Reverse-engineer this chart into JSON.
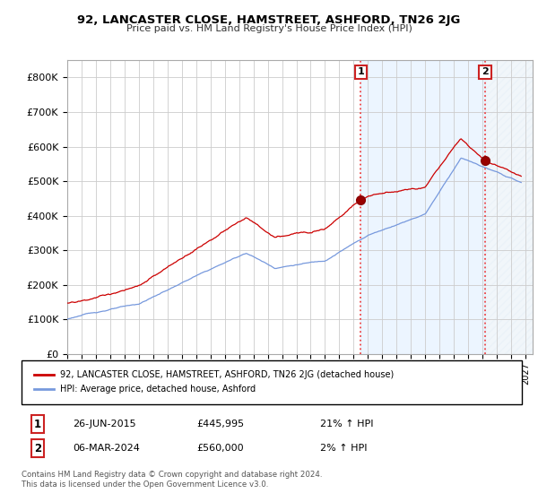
{
  "title": "92, LANCASTER CLOSE, HAMSTREET, ASHFORD, TN26 2JG",
  "subtitle": "Price paid vs. HM Land Registry's House Price Index (HPI)",
  "background_color": "#ffffff",
  "plot_background": "#ffffff",
  "grid_color": "#cccccc",
  "hpi_color": "#7799dd",
  "price_color": "#cc0000",
  "ylim": [
    0,
    850000
  ],
  "yticks": [
    0,
    100000,
    200000,
    300000,
    400000,
    500000,
    600000,
    700000,
    800000
  ],
  "ytick_labels": [
    "£0",
    "£100K",
    "£200K",
    "£300K",
    "£400K",
    "£500K",
    "£600K",
    "£700K",
    "£800K"
  ],
  "xlim_start": 1995.0,
  "xlim_end": 2027.5,
  "transaction1_date": 2015.49,
  "transaction1_price": 445995,
  "transaction1_label": "1",
  "transaction2_date": 2024.18,
  "transaction2_price": 560000,
  "transaction2_label": "2",
  "legend_line1": "92, LANCASTER CLOSE, HAMSTREET, ASHFORD, TN26 2JG (detached house)",
  "legend_line2": "HPI: Average price, detached house, Ashford",
  "annot1_date": "26-JUN-2015",
  "annot1_price": "£445,995",
  "annot1_hpi": "21% ↑ HPI",
  "annot2_date": "06-MAR-2024",
  "annot2_price": "£560,000",
  "annot2_hpi": "2% ↑ HPI",
  "footer": "Contains HM Land Registry data © Crown copyright and database right 2024.\nThis data is licensed under the Open Government Licence v3.0.",
  "vline_color": "#ee4444",
  "shading_color": "#ddeeff",
  "shading_alpha": 0.55,
  "hatch_color": "#bbccdd",
  "hatch_pattern": "////"
}
